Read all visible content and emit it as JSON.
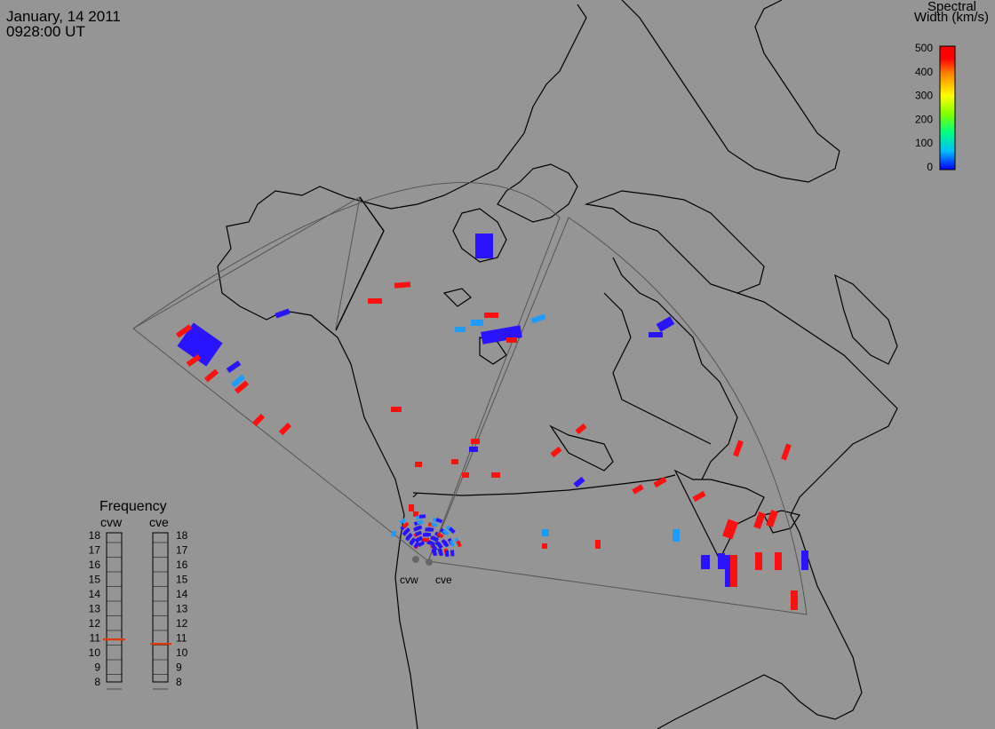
{
  "header": {
    "date": "January, 14 2011",
    "time": "0928:00 UT"
  },
  "colorbar": {
    "title_line1": "Spectral",
    "title_line2": "Width (km/s)",
    "ticks": [
      "500",
      "400",
      "300",
      "200",
      "100",
      "0"
    ],
    "colors": [
      "#0000ff",
      "#00bfff",
      "#00ff80",
      "#80ff00",
      "#ffff00",
      "#ff8000",
      "#ff0000"
    ]
  },
  "frequency_panel": {
    "title": "Frequency",
    "radars": [
      "cvw",
      "cve"
    ],
    "scale": [
      "18",
      "17",
      "16",
      "15",
      "14",
      "13",
      "12",
      "11",
      "10",
      "9",
      "8"
    ],
    "cvw_value_mhz": 10.9,
    "cve_value_mhz": 10.6
  },
  "radar_labels": {
    "cvw": "cvw",
    "cve": "cve"
  },
  "colors": {
    "background": "#959595",
    "low_width": "#2a14ff",
    "mid_width": "#1e9bff",
    "high_width": "#ff1010",
    "frequency_marker": "#e03a0a"
  }
}
